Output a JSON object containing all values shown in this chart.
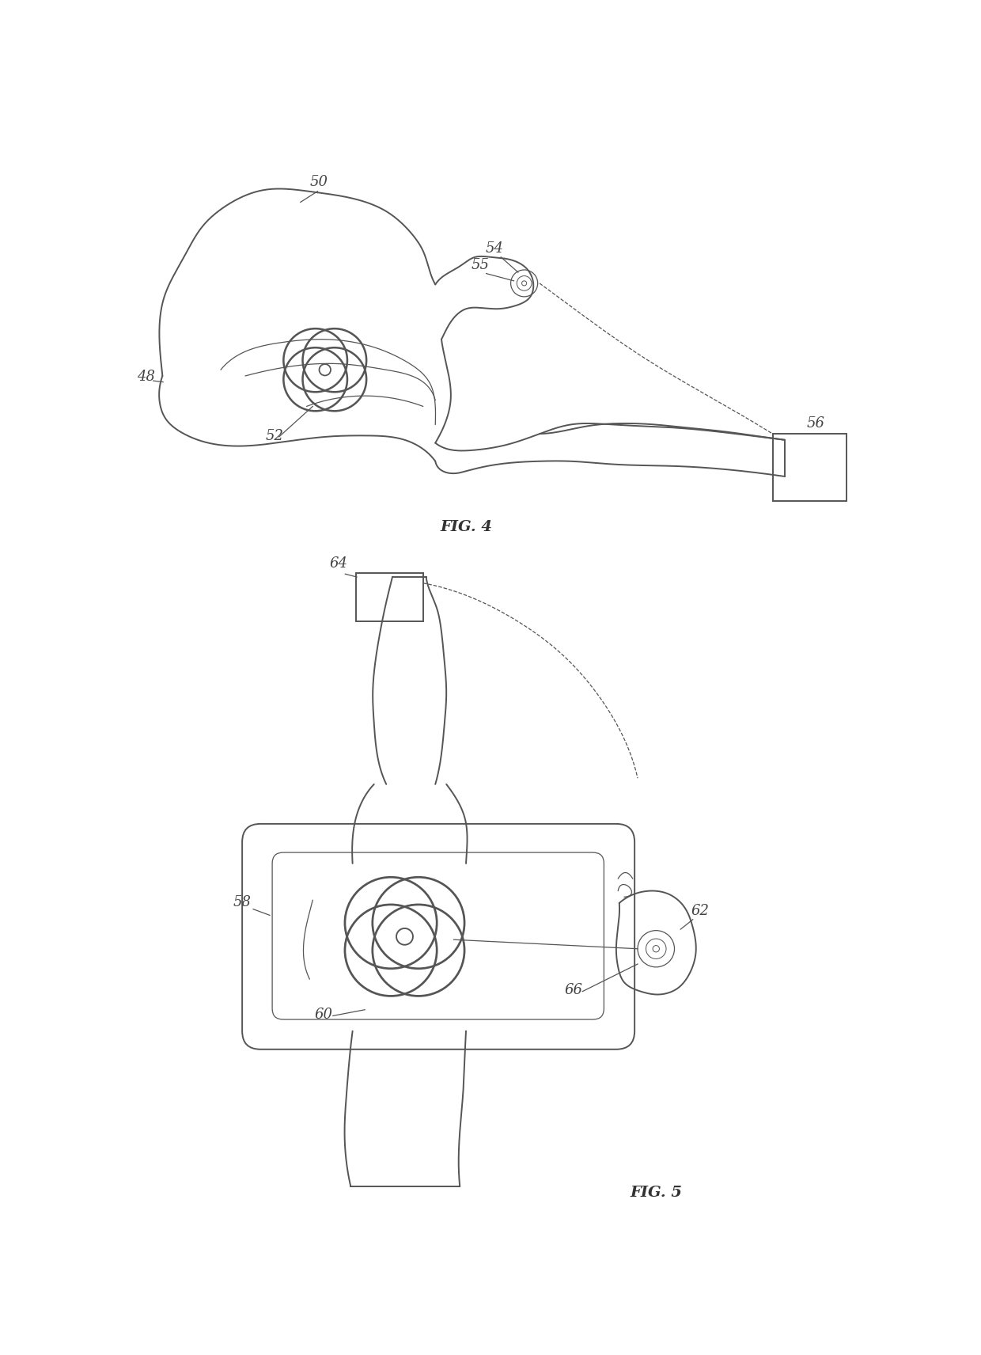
{
  "fig_width": 12.4,
  "fig_height": 17.12,
  "bg_color": "#ffffff",
  "lc": "#555555",
  "lw": 1.4,
  "lw_thin": 0.9,
  "fig4_label": "FIG. 4",
  "fig5_label": "FIG. 5",
  "font_size_label": 13,
  "font_size_fig": 14
}
